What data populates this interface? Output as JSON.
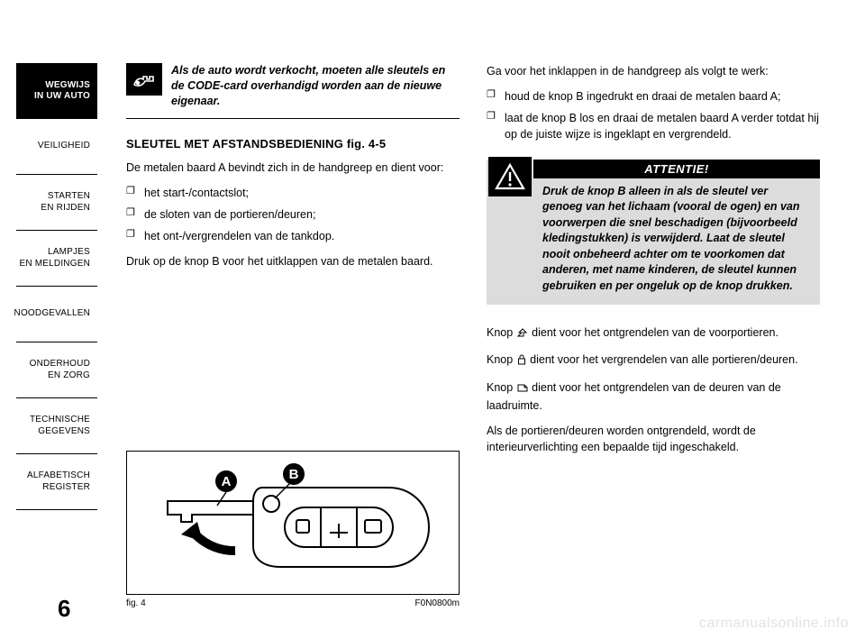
{
  "page_number": "6",
  "watermark": "carmanualsonline.info",
  "sidebar": {
    "active_index": 0,
    "items": [
      "WEGWIJS\nIN UW AUTO",
      "VEILIGHEID",
      "STARTEN\nEN RIJDEN",
      "LAMPJES\nEN MELDINGEN",
      "NOODGEVALLEN",
      "ONDERHOUD\nEN ZORG",
      "TECHNISCHE\nGEGEVENS",
      "ALFABETISCH\nREGISTER"
    ]
  },
  "left": {
    "note_icon": "hand-key-icon",
    "note_text": "Als de auto wordt verkocht, moeten alle sleutels en de CODE-card overhandigd worden aan de nieuwe eigenaar.",
    "heading": "SLEUTEL MET AFSTANDSBEDIENING fig. 4-5",
    "para1": "De metalen baard A bevindt zich in de handgreep en dient voor:",
    "bullets": [
      "het start-/contactslot;",
      "de sloten van de portieren/deuren;",
      "het ont-/vergrendelen van de tankdop."
    ],
    "para2": "Druk op de knop B voor het uitklappen van de metalen baard."
  },
  "right": {
    "para1": "Ga voor het inklappen in de handgreep als volgt te werk:",
    "bullets": [
      "houd de knop B ingedrukt en draai de metalen baard A;",
      "laat de knop B los en draai de metalen baard A verder totdat hij op de juiste wijze is ingeklapt en vergrendeld."
    ],
    "warn_title": "ATTENTIE!",
    "warn_text": "Druk de knop B alleen in als de sleutel ver genoeg van het lichaam (vooral de ogen) en van voorwerpen die snel beschadigen (bijvoorbeeld kledingstukken) is verwijderd. Laat de sleutel nooit onbeheerd achter om te voorkomen dat anderen, met name kinderen, de sleutel kunnen gebruiken en per ongeluk op de knop drukken.",
    "p_unlock_a": "Knop ",
    "p_unlock_b": " dient voor het ontgrendelen van de voorportieren.",
    "p_lock_a": "Knop ",
    "p_lock_b": " dient voor het vergrendelen van alle portieren/deuren.",
    "p_trunk_a": "Knop ",
    "p_trunk_b": " dient voor het ontgrendelen van de deuren van de laadruimte.",
    "p_last": "Als de portieren/deuren worden ontgrendeld, wordt de interieurverlichting een bepaalde tijd ingeschakeld."
  },
  "figure": {
    "caption_left": "fig. 4",
    "caption_right": "F0N0800m",
    "labels": {
      "A": "A",
      "B": "B"
    }
  },
  "colors": {
    "bg": "#ffffff",
    "text": "#000000",
    "warn_bg": "#dcdcdc",
    "watermark": "#e3e3e3"
  },
  "icons": {
    "unlock": "�her",
    "lock": "🔒",
    "trunk": "⇱"
  }
}
